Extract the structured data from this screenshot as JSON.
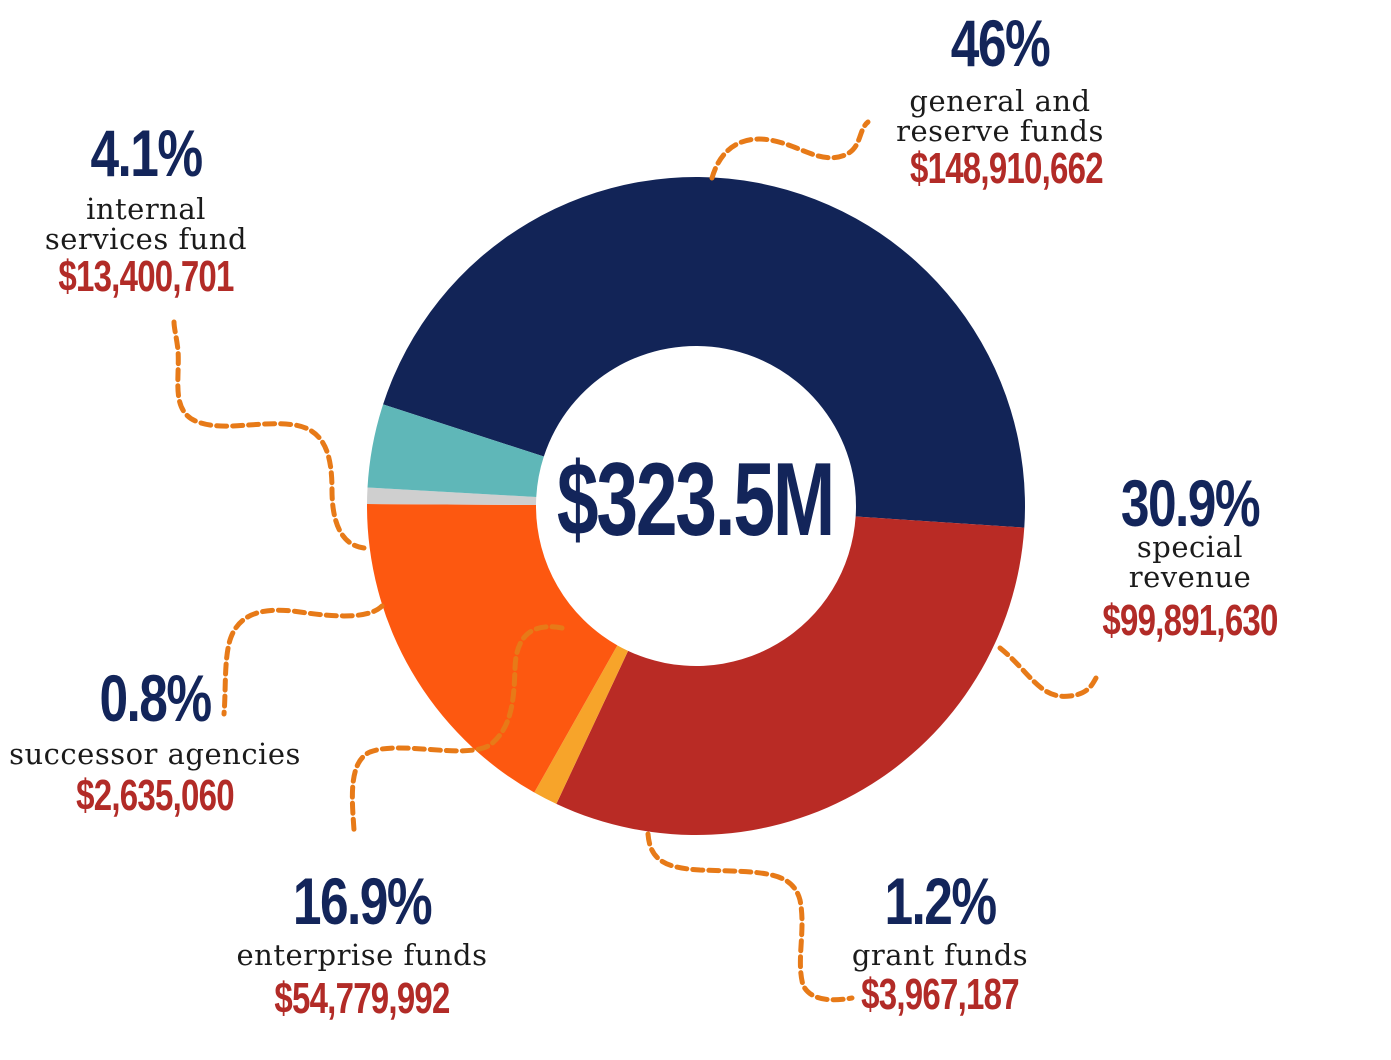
{
  "chart_data": {
    "type": "pie",
    "title": "",
    "total_label": "$323.5M",
    "categories": [
      "general and reserve funds",
      "special revenue",
      "grant funds",
      "enterprise funds",
      "successor agencies",
      "internal services fund"
    ],
    "values": [
      46,
      30.9,
      1.2,
      16.9,
      0.8,
      4.1
    ],
    "slices": [
      {
        "name": "general and reserve funds",
        "percent": 46,
        "percent_label": "46%",
        "label_lines": [
          "general and",
          "reserve funds"
        ],
        "amount": "$148,910,662",
        "color": "#122457"
      },
      {
        "name": "special revenue",
        "percent": 30.9,
        "percent_label": "30.9%",
        "label_lines": [
          "special",
          "revenue"
        ],
        "amount": "$99,891,630",
        "color": "#b92b25"
      },
      {
        "name": "grant funds",
        "percent": 1.2,
        "percent_label": "1.2%",
        "label_lines": [
          "grant funds"
        ],
        "amount": "$3,967,187",
        "color": "#f7a42a"
      },
      {
        "name": "enterprise funds",
        "percent": 16.9,
        "percent_label": "16.9%",
        "label_lines": [
          "enterprise funds"
        ],
        "amount": "$54,779,992",
        "color": "#fd5810"
      },
      {
        "name": "successor agencies",
        "percent": 0.8,
        "percent_label": "0.8%",
        "label_lines": [
          "successor agencies"
        ],
        "amount": "$2,635,060",
        "color": "#cfcfcf"
      },
      {
        "name": "internal services fund",
        "percent": 4.1,
        "percent_label": "4.1%",
        "label_lines": [
          "internal",
          "services fund"
        ],
        "amount": "$13,400,701",
        "color": "#5fb7b8"
      }
    ],
    "leader_color": "#e77a18"
  }
}
